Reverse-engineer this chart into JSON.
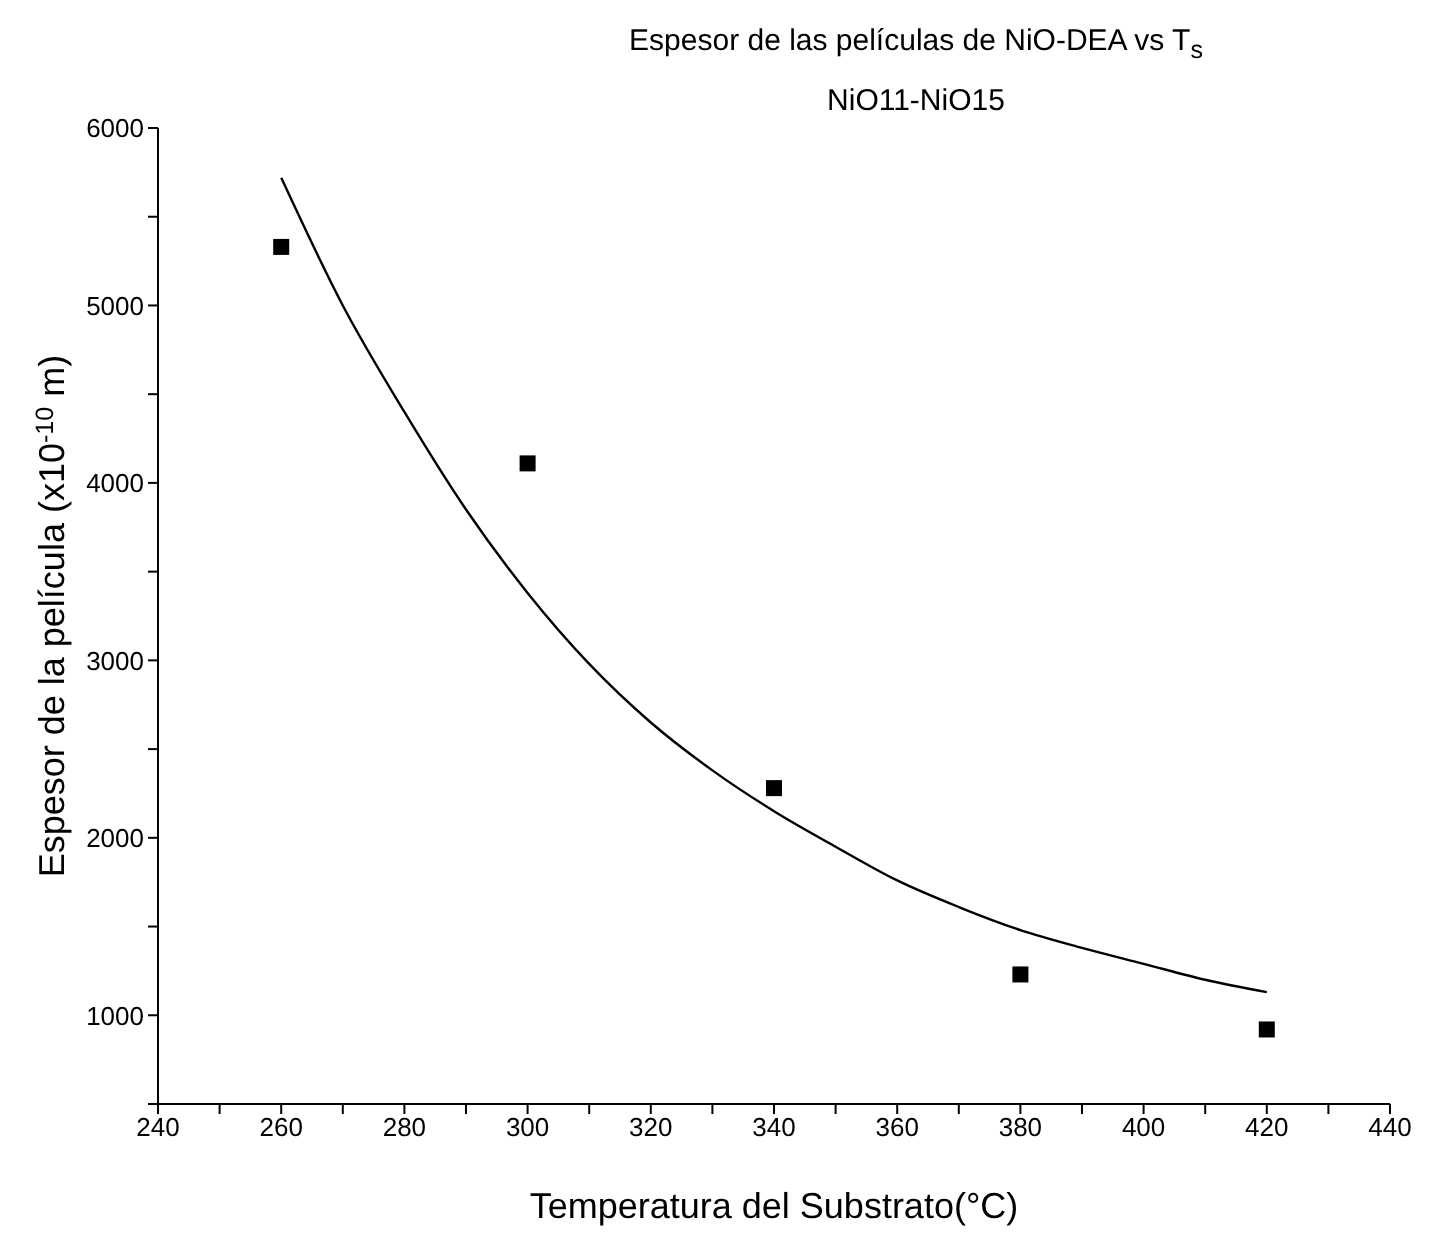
{
  "chart_data": {
    "type": "scatter",
    "title": "Espesor de las películas de NiO-DEA vs T$_{s}$",
    "subtitle": "NiO11-NiO15",
    "xlabel": "Temperatura del Substrato(°C)",
    "ylabel": "Espesor de la película (x10$^{-10}$ m)",
    "x": [
      260,
      300,
      340,
      380,
      420
    ],
    "series": [
      {
        "color": "#000000",
        "marker": "square",
        "values": [
          5330,
          4110,
          2280,
          1230,
          920
        ]
      },
      {
        "type": "line",
        "color": "#000000",
        "marker": "none",
        "line_style": "solid",
        "x": [
          260,
          270,
          280,
          290,
          300,
          310,
          320,
          330,
          340,
          350,
          360,
          370,
          380,
          390,
          400,
          410,
          420
        ],
        "values": [
          5720,
          5000,
          4400,
          3850,
          3380,
          2980,
          2650,
          2380,
          2150,
          1950,
          1760,
          1610,
          1480,
          1380,
          1290,
          1200,
          1130
        ]
      }
    ],
    "xlim": [
      240,
      440
    ],
    "xticks": [
      240,
      {
        "value": 250,
        "label": null
      },
      260,
      {
        "value": 270,
        "label": null
      },
      280,
      {
        "value": 290,
        "label": null
      },
      300,
      {
        "value": 310,
        "label": null
      },
      320,
      {
        "value": 330,
        "label": null
      },
      340,
      {
        "value": 350,
        "label": null
      },
      360,
      {
        "value": 370,
        "label": null
      },
      380,
      {
        "value": 390,
        "label": null
      },
      400,
      {
        "value": 410,
        "label": null
      },
      420,
      {
        "value": 430,
        "label": null
      },
      440
    ],
    "ylim": [
      500,
      6000
    ],
    "yticks": [
      {
        "value": 500,
        "label": null
      },
      1000,
      {
        "value": 1500,
        "label": null
      },
      2000,
      {
        "value": 2500,
        "label": null
      },
      3000,
      {
        "value": 3500,
        "label": null
      },
      4000,
      {
        "value": 4500,
        "label": null
      },
      5000,
      {
        "value": 5500,
        "label": null
      },
      6000
    ],
    "grid": false,
    "legend": false
  }
}
